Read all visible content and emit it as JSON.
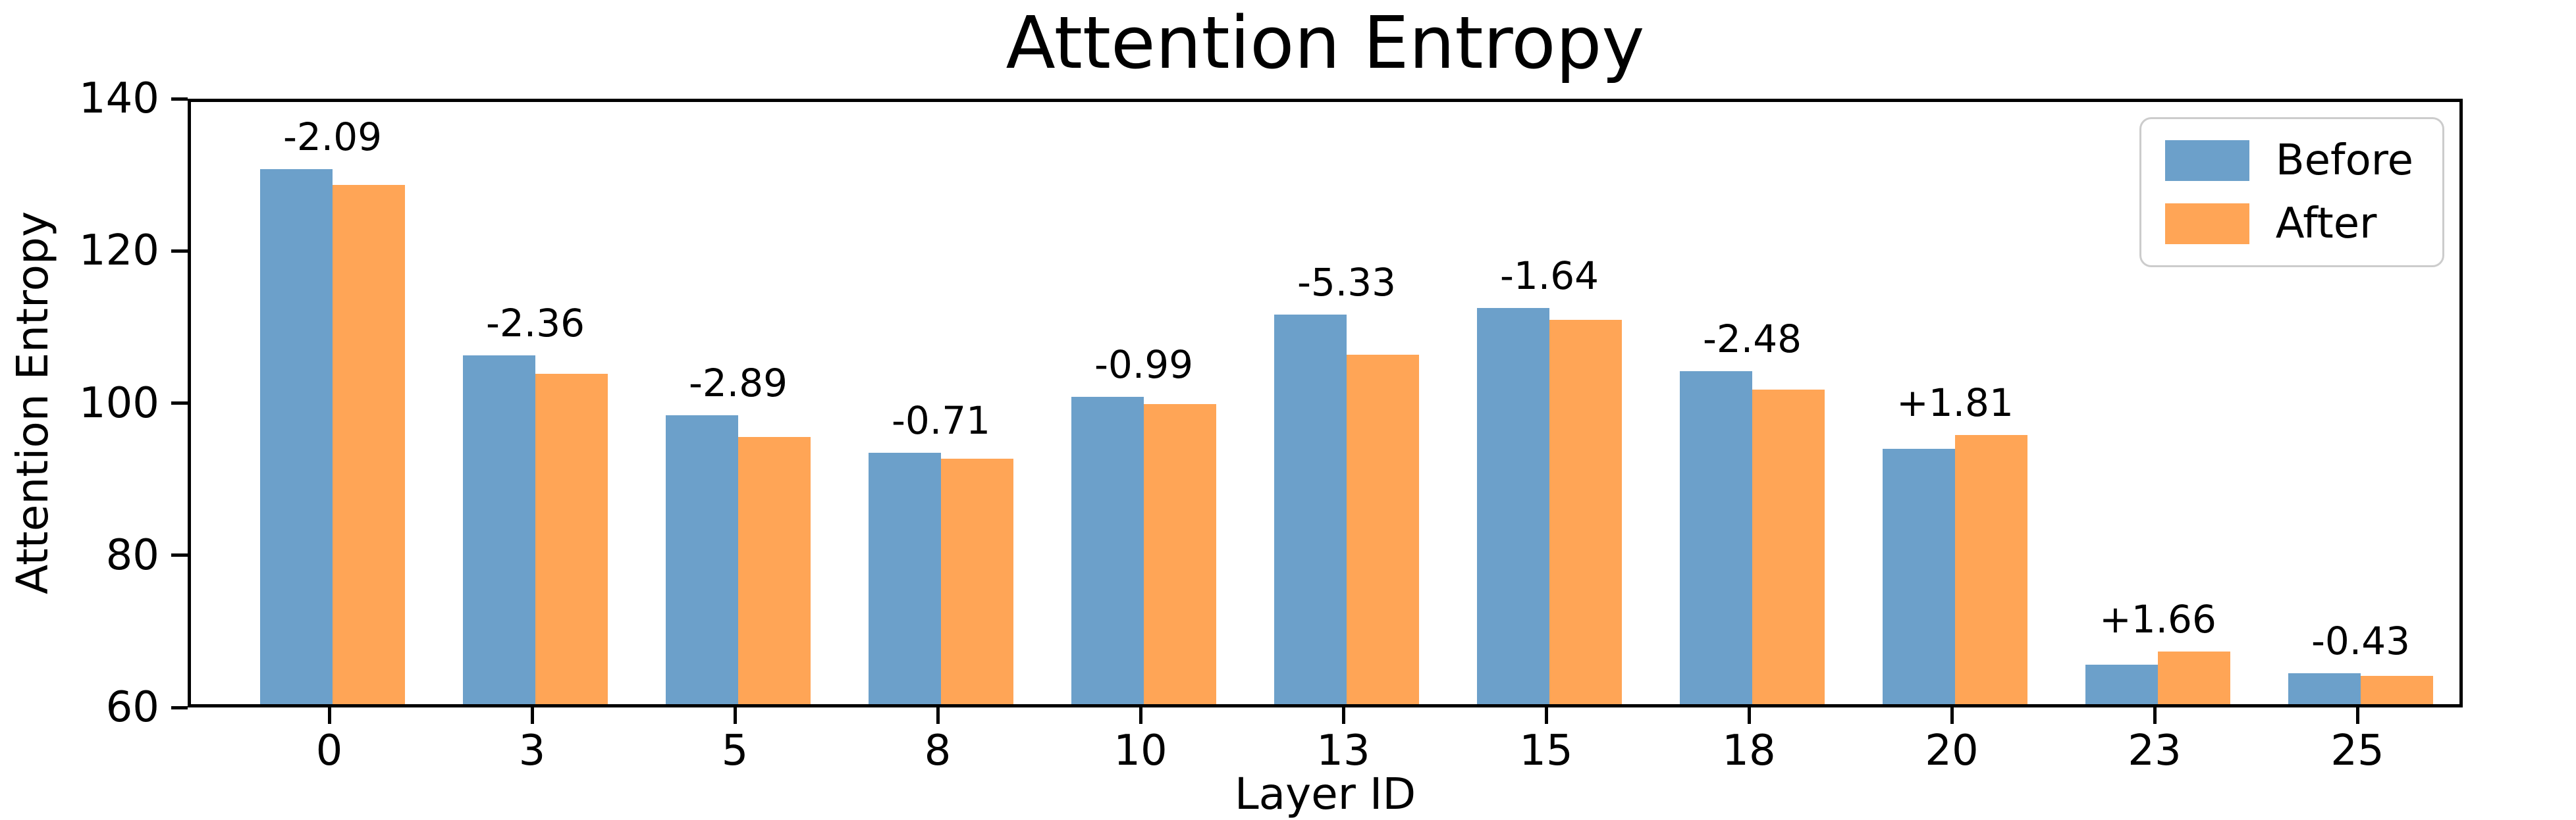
{
  "title": "Attention Entropy",
  "xlabel": "Layer ID",
  "ylabel": "Attention Entropy",
  "legend": {
    "before_label": "Before",
    "after_label": "After"
  },
  "colors": {
    "before": "#6CA0CA",
    "after": "#FFA556",
    "spine": "#000000",
    "legend_border": "#CCCCCC",
    "background": "#FFFFFF"
  },
  "chart_data": {
    "type": "bar",
    "title": "Attention Entropy",
    "xlabel": "Layer ID",
    "ylabel": "Attention Entropy",
    "categories": [
      "0",
      "3",
      "5",
      "8",
      "10",
      "13",
      "15",
      "18",
      "20",
      "23",
      "25"
    ],
    "series": [
      {
        "name": "Before",
        "color": "#6CA0CA",
        "values": [
          130.3,
          105.8,
          98.0,
          93.0,
          100.4,
          111.2,
          112.1,
          103.8,
          93.6,
          65.2,
          64.1
        ]
      },
      {
        "name": "After",
        "color": "#FFA556",
        "values": [
          128.2,
          103.4,
          95.1,
          92.3,
          99.4,
          105.9,
          110.5,
          101.3,
          95.4,
          66.9,
          63.7
        ]
      }
    ],
    "annotations": [
      "-2.09",
      "-2.36",
      "-2.89",
      "-0.71",
      "-0.99",
      "-5.33",
      "-1.64",
      "-2.48",
      "+1.81",
      "+1.66",
      "-0.43"
    ],
    "ylim": [
      60,
      140
    ],
    "yticks": [
      60,
      80,
      100,
      120,
      140
    ],
    "grid": false,
    "legend_position": "upper right"
  }
}
